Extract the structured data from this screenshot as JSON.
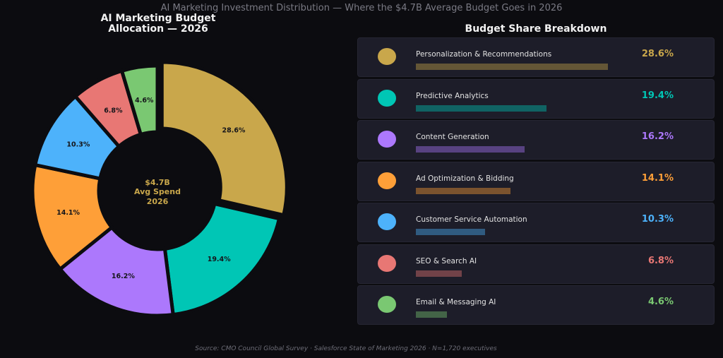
{
  "suptitle": "AI Marketing Investment Distribution — Where the $4.7B Average Budget Goes in 2026",
  "donut": {
    "title_line1": "AI Marketing Budget",
    "title_line2": "Allocation — 2026",
    "center_line1": "$4.7B",
    "center_line2": "Avg Spend",
    "center_line3": "2026"
  },
  "panel_title": "Budget Share Breakdown",
  "source": "Source: CMO Council Global Survey · Salesforce State of Marketing 2026 · N=1,720 executives",
  "chart_data": {
    "type": "pie",
    "categories": [
      "Personalization & Recommendations",
      "Predictive Analytics",
      "Content Generation",
      "Ad Optimization & Bidding",
      "Customer Service Automation",
      "SEO & Search AI",
      "Email & Messaging AI"
    ],
    "values": [
      28.6,
      19.4,
      16.2,
      14.1,
      10.3,
      6.8,
      4.6
    ],
    "labels": [
      "28.6%",
      "19.4%",
      "16.2%",
      "14.1%",
      "10.3%",
      "6.8%",
      "4.6%"
    ],
    "colors": [
      "#c9a74b",
      "#00c6b5",
      "#ac78fc",
      "#fe9f38",
      "#4db2fb",
      "#e87774",
      "#7ac872"
    ],
    "donut": true,
    "exploded_first": true
  }
}
